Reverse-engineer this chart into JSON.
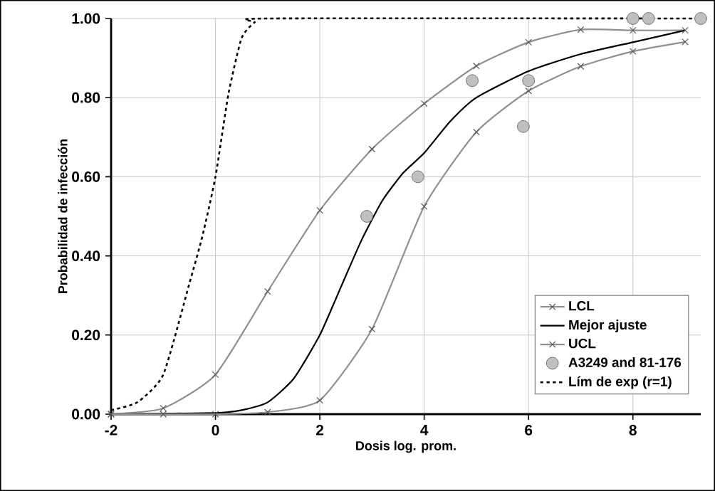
{
  "chart_data": {
    "type": "line",
    "xlabel": "Dosis log. prom.",
    "ylabel": "Probabilidad de infección",
    "xlim": [
      -2,
      9.3
    ],
    "ylim": [
      0,
      1
    ],
    "xticks": [
      -2,
      0,
      2,
      4,
      6,
      8
    ],
    "yticks": [
      {
        "value": 0,
        "label": "0.00"
      },
      {
        "value": 0.2,
        "label": "0.20"
      },
      {
        "value": 0.4,
        "label": "0.40"
      },
      {
        "value": 0.6,
        "label": "0.60"
      },
      {
        "value": 0.8,
        "label": "0.80"
      },
      {
        "value": 1,
        "label": "1.00"
      }
    ],
    "grid": true,
    "legend": "bottom right",
    "series": [
      {
        "name": "LCL",
        "color": "#909090",
        "marker": "cross",
        "x": [
          -2,
          -1,
          0,
          1,
          2,
          3,
          4,
          5,
          6,
          7,
          8,
          9
        ],
        "values": [
          0.0,
          0.015,
          0.1,
          0.31,
          0.515,
          0.67,
          0.785,
          0.88,
          0.94,
          0.972,
          0.97,
          0.97
        ]
      },
      {
        "name": "Mejor ajuste",
        "color": "#000000",
        "x": [
          -2,
          0,
          0.5,
          1,
          1.5,
          2,
          2.4,
          2.8,
          3.2,
          3.6,
          4,
          4.5,
          5,
          6,
          7,
          8,
          9
        ],
        "values": [
          0.0,
          0.003,
          0.01,
          0.03,
          0.09,
          0.2,
          0.32,
          0.44,
          0.54,
          0.61,
          0.66,
          0.74,
          0.8,
          0.867,
          0.91,
          0.94,
          0.97
        ]
      },
      {
        "name": "UCL",
        "color": "#909090",
        "marker": "cross",
        "x": [
          -2,
          -1,
          0,
          1,
          2,
          3,
          4,
          5,
          6,
          7,
          8,
          9
        ],
        "values": [
          0.0,
          0.0,
          0.0,
          0.005,
          0.035,
          0.215,
          0.525,
          0.713,
          0.817,
          0.879,
          0.917,
          0.941
        ]
      },
      {
        "name": "A3249 and 81-176",
        "type": "scatter",
        "color": "#c0c0c0",
        "marker": "circle",
        "x": [
          2.9,
          3.88,
          4.92,
          5.9,
          6.0,
          8.0,
          8.3,
          9.3
        ],
        "values": [
          0.5,
          0.6,
          0.843,
          0.727,
          0.843,
          1.0,
          1.0,
          1.0
        ]
      },
      {
        "name": "Lím de exp (r=1)",
        "color": "#000000",
        "line_style": "dotted",
        "x": [
          -2,
          -1.5,
          -1,
          -0.5,
          -0.25,
          0,
          0.25,
          0.5,
          0.75,
          1,
          9.3
        ],
        "values": [
          0.01,
          0.03,
          0.1,
          0.33,
          0.45,
          0.6,
          0.81,
          0.95,
          0.99,
          1.0,
          1.0
        ]
      }
    ]
  }
}
